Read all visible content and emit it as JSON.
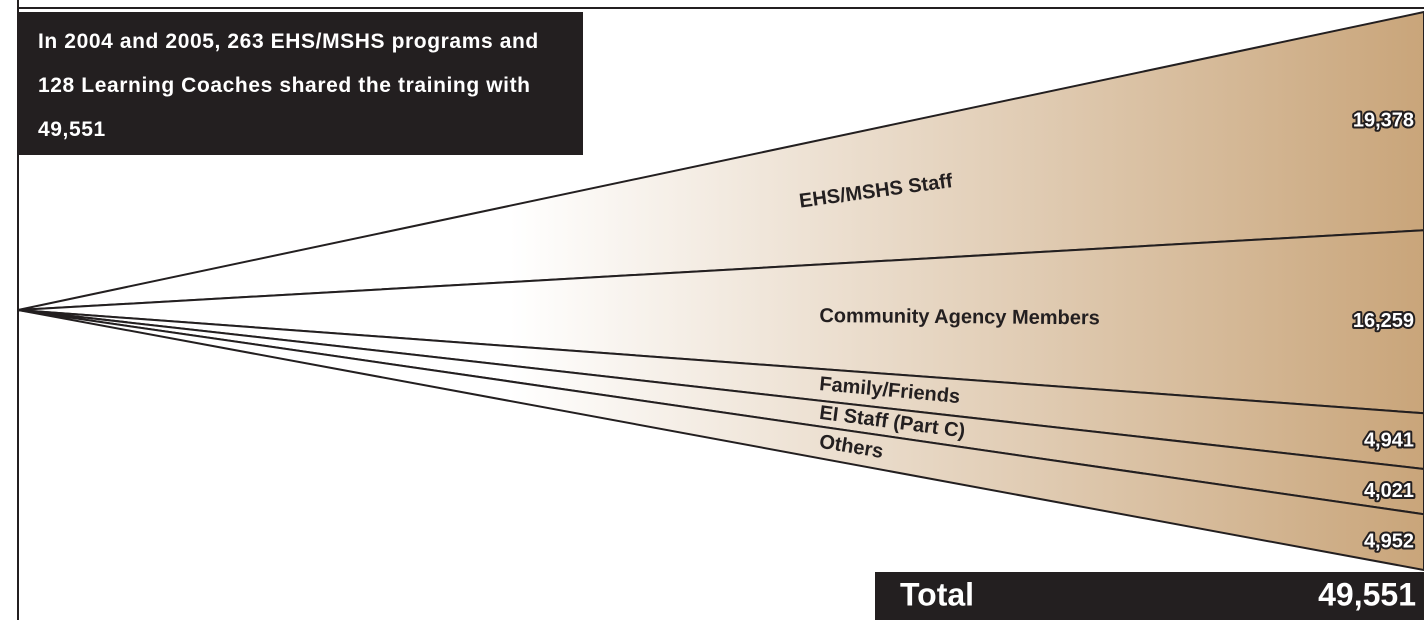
{
  "chart_data": {
    "type": "fan",
    "note": "In 2004 and 2005, 263 EHS/MSHS programs and 128 Learning Coaches shared the training with 49,551",
    "categories": [
      "EHS/MSHS Staff",
      "Community Agency Members",
      "Family/Friends",
      "EI Staff (Part C)",
      "Others"
    ],
    "values": [
      19378,
      16259,
      4941,
      4021,
      4952
    ],
    "value_labels": [
      "19,378",
      "16,259",
      "4,941",
      "4,021",
      "4,952"
    ],
    "total_title": "Total",
    "total": 49551,
    "total_label": "49,551",
    "color": "#c9a57a"
  }
}
